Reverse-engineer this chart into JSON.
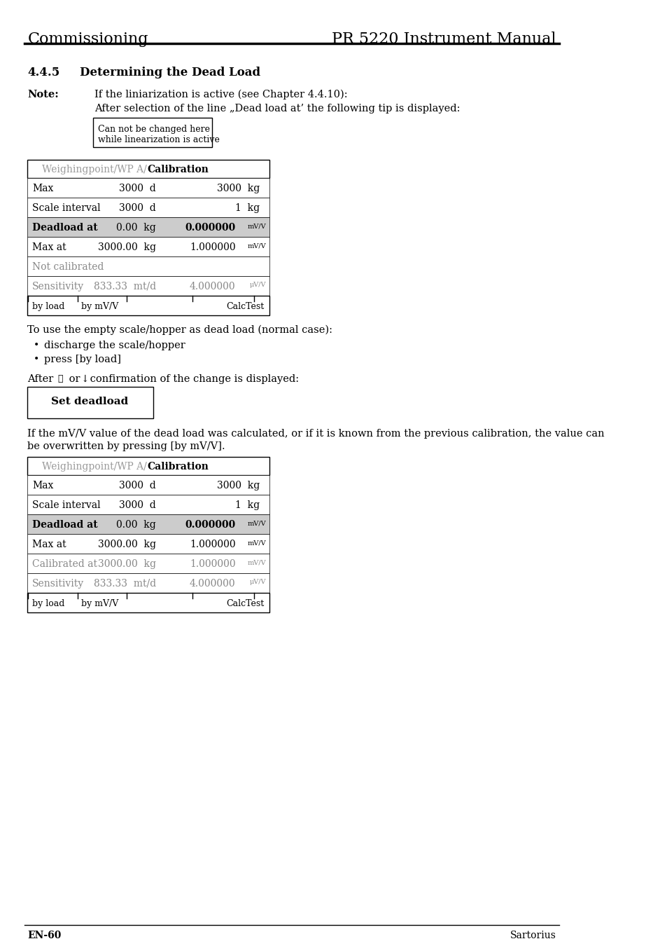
{
  "page_title_left": "Commissioning",
  "page_title_right": "PR 5220 Instrument Manual",
  "section": "4.4.5",
  "section_title": "Determining the Dead Load",
  "note_label": "Note:",
  "note_line1": "If the liniarization is active (see Chapter 4.4.10):",
  "note_line2": "After selection of the line „Dead load at’ the following tip is displayed:",
  "tip_box_line1": "Can not be changed here",
  "tip_box_line2": "while linearization is active",
  "table1_header_gray": "Weighingpoint/WP A/",
  "table1_header_bold": "Calibration",
  "table1_rows": [
    {
      "label": "Max",
      "val1": "3000  d",
      "val2": "3000  kg",
      "bold": false,
      "gray_bg": false,
      "gray_text": false
    },
    {
      "label": "Scale interval",
      "val1": "3000  d",
      "val2": "1  kg",
      "bold": false,
      "gray_bg": false,
      "gray_text": false
    },
    {
      "label": "Deadload at",
      "val1": "0.00  kg",
      "val2": "0.000000  mV/V",
      "bold": true,
      "gray_bg": true,
      "gray_text": false
    },
    {
      "label": "Max at",
      "val1": "3000.00  kg",
      "val2": "1.000000  mV/V",
      "bold": false,
      "gray_bg": false,
      "gray_text": false
    },
    {
      "label": "Not calibrated",
      "val1": "",
      "val2": "",
      "bold": false,
      "gray_bg": false,
      "gray_text": true
    },
    {
      "label": "Sensitivity",
      "val1": "833.33  mt/d",
      "val2": "4.000000  μV/V",
      "bold": false,
      "gray_bg": false,
      "gray_text": true
    }
  ],
  "table1_footer": [
    "by load",
    "by mV/V",
    "",
    "",
    "CalcTest"
  ],
  "paragraph1": "To use the empty scale/hopper as dead load (normal case):",
  "bullets": [
    "discharge the scale/hopper",
    "press [by load]"
  ],
  "after_text": "After ⒪ or ↓ confirmation of the change is displayed:",
  "set_deadload_box": "Set deadload",
  "paragraph2_line1": "If the mV/V value of the dead load was calculated, or if it is known from the previous calibration, the value can",
  "paragraph2_line2": "be overwritten by pressing [by mV/V].",
  "table2_header_gray": "Weighingpoint/WP A/",
  "table2_header_bold": "Calibration",
  "table2_rows": [
    {
      "label": "Max",
      "val1": "3000  d",
      "val2": "3000  kg",
      "bold": false,
      "gray_bg": false,
      "gray_text": false
    },
    {
      "label": "Scale interval",
      "val1": "3000  d",
      "val2": "1  kg",
      "bold": false,
      "gray_bg": false,
      "gray_text": false
    },
    {
      "label": "Deadload at",
      "val1": "0.00  kg",
      "val2": "0.000000  mV/V",
      "bold": true,
      "gray_bg": true,
      "gray_text": false
    },
    {
      "label": "Max at",
      "val1": "3000.00  kg",
      "val2": "1.000000  mV/V",
      "bold": false,
      "gray_bg": false,
      "gray_text": false
    },
    {
      "label": "Calibrated at",
      "val1": "3000.00  kg",
      "val2": "1.000000  mV/V",
      "bold": false,
      "gray_bg": false,
      "gray_text": true
    },
    {
      "label": "Sensitivity",
      "val1": "833.33  mt/d",
      "val2": "4.000000  μV/V",
      "bold": false,
      "gray_bg": false,
      "gray_text": true
    }
  ],
  "table2_footer": [
    "by load",
    "by mV/V",
    "",
    "",
    "CalcTest"
  ],
  "footer_left": "EN-60",
  "footer_right": "Sartorius",
  "bg_color": "#ffffff",
  "text_color": "#000000",
  "gray_text_color": "#888888",
  "table_border_color": "#000000",
  "header_gray_color": "#888888",
  "row_gray_bg": "#cccccc",
  "tip_box_border": "#000000"
}
